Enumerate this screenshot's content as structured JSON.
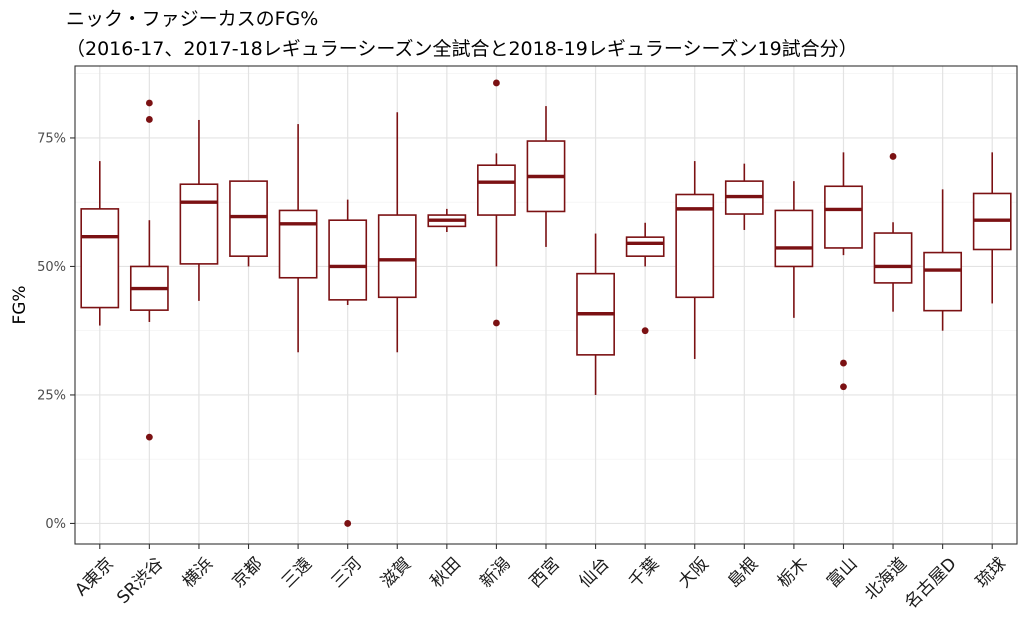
{
  "chart_data": {
    "type": "boxplot",
    "title": "ニック・ファジーカスのFG%",
    "subtitle": "（2016-17、2017-18レギュラーシーズン全試合と2018-19レギュラーシーズン19試合分）",
    "xlabel": "",
    "ylabel": "FG%",
    "ylim": [
      -0.04,
      0.89
    ],
    "yticks": [
      0,
      0.25,
      0.5,
      0.75
    ],
    "ytick_labels": [
      "0%",
      "25%",
      "50%",
      "75%"
    ],
    "grid": true,
    "color": "#7b1113",
    "categories": [
      "A東京",
      "SR渋谷",
      "横浜",
      "京都",
      "三遠",
      "三河",
      "滋賀",
      "秋田",
      "新潟",
      "西宮",
      "仙台",
      "千葉",
      "大阪",
      "島根",
      "栃木",
      "富山",
      "北海道",
      "名古屋D",
      "琉球"
    ],
    "boxes": [
      {
        "whisker_low": 0.385,
        "q1": 0.42,
        "median": 0.558,
        "q3": 0.612,
        "whisker_high": 0.705,
        "outliers": []
      },
      {
        "whisker_low": 0.392,
        "q1": 0.415,
        "median": 0.457,
        "q3": 0.5,
        "whisker_high": 0.59,
        "outliers": [
          0.168,
          0.786,
          0.818
        ]
      },
      {
        "whisker_low": 0.433,
        "q1": 0.505,
        "median": 0.625,
        "q3": 0.66,
        "whisker_high": 0.785,
        "outliers": []
      },
      {
        "whisker_low": 0.5,
        "q1": 0.52,
        "median": 0.597,
        "q3": 0.666,
        "whisker_high": 0.666,
        "outliers": []
      },
      {
        "whisker_low": 0.333,
        "q1": 0.478,
        "median": 0.583,
        "q3": 0.609,
        "whisker_high": 0.777,
        "outliers": []
      },
      {
        "whisker_low": 0.425,
        "q1": 0.435,
        "median": 0.5,
        "q3": 0.59,
        "whisker_high": 0.63,
        "outliers": [
          0.0
        ]
      },
      {
        "whisker_low": 0.333,
        "q1": 0.44,
        "median": 0.513,
        "q3": 0.6,
        "whisker_high": 0.8,
        "outliers": []
      },
      {
        "whisker_low": 0.567,
        "q1": 0.578,
        "median": 0.59,
        "q3": 0.6,
        "whisker_high": 0.612,
        "outliers": []
      },
      {
        "whisker_low": 0.5,
        "q1": 0.6,
        "median": 0.664,
        "q3": 0.697,
        "whisker_high": 0.72,
        "outliers": [
          0.39,
          0.857
        ]
      },
      {
        "whisker_low": 0.538,
        "q1": 0.607,
        "median": 0.675,
        "q3": 0.744,
        "whisker_high": 0.812,
        "outliers": []
      },
      {
        "whisker_low": 0.25,
        "q1": 0.328,
        "median": 0.408,
        "q3": 0.486,
        "whisker_high": 0.564,
        "outliers": []
      },
      {
        "whisker_low": 0.5,
        "q1": 0.52,
        "median": 0.545,
        "q3": 0.557,
        "whisker_high": 0.585,
        "outliers": [
          0.375
        ]
      },
      {
        "whisker_low": 0.32,
        "q1": 0.44,
        "median": 0.612,
        "q3": 0.64,
        "whisker_high": 0.705,
        "outliers": []
      },
      {
        "whisker_low": 0.571,
        "q1": 0.602,
        "median": 0.636,
        "q3": 0.666,
        "whisker_high": 0.7,
        "outliers": []
      },
      {
        "whisker_low": 0.4,
        "q1": 0.5,
        "median": 0.536,
        "q3": 0.609,
        "whisker_high": 0.666,
        "outliers": []
      },
      {
        "whisker_low": 0.522,
        "q1": 0.536,
        "median": 0.611,
        "q3": 0.656,
        "whisker_high": 0.722,
        "outliers": [
          0.266,
          0.312
        ]
      },
      {
        "whisker_low": 0.412,
        "q1": 0.468,
        "median": 0.5,
        "q3": 0.565,
        "whisker_high": 0.586,
        "outliers": [
          0.714
        ]
      },
      {
        "whisker_low": 0.375,
        "q1": 0.414,
        "median": 0.493,
        "q3": 0.527,
        "whisker_high": 0.65,
        "outliers": []
      },
      {
        "whisker_low": 0.428,
        "q1": 0.533,
        "median": 0.59,
        "q3": 0.642,
        "whisker_high": 0.722,
        "outliers": []
      }
    ]
  }
}
